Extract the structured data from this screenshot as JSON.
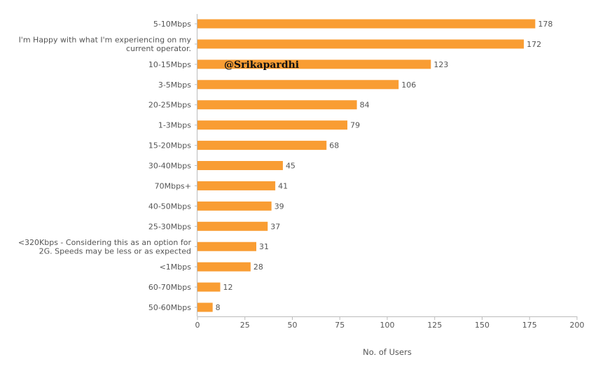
{
  "chart_data": {
    "type": "bar",
    "orientation": "horizontal",
    "categories": [
      "5-10Mbps",
      "I'm Happy with what I'm experiencing on my current operator.",
      "10-15Mbps",
      "3-5Mbps",
      "20-25Mbps",
      "1-3Mbps",
      "15-20Mbps",
      "30-40Mbps",
      "70Mbps+",
      "40-50Mbps",
      "25-30Mbps",
      "<320Kbps - Considering this as an option for 2G. Speeds may be less or as expected",
      "<1Mbps",
      "60-70Mbps",
      "50-60Mbps"
    ],
    "category_lines": [
      [
        "5-10Mbps"
      ],
      [
        "I'm Happy with what I'm experiencing on my",
        "current operator."
      ],
      [
        "10-15Mbps"
      ],
      [
        "3-5Mbps"
      ],
      [
        "20-25Mbps"
      ],
      [
        "1-3Mbps"
      ],
      [
        "15-20Mbps"
      ],
      [
        "30-40Mbps"
      ],
      [
        "70Mbps+"
      ],
      [
        "40-50Mbps"
      ],
      [
        "25-30Mbps"
      ],
      [
        "<320Kbps - Considering this as an option for",
        "2G. Speeds may be less or as expected"
      ],
      [
        "<1Mbps"
      ],
      [
        "60-70Mbps"
      ],
      [
        "50-60Mbps"
      ]
    ],
    "values": [
      178,
      172,
      123,
      106,
      84,
      79,
      68,
      45,
      41,
      39,
      37,
      31,
      28,
      12,
      8
    ],
    "xlabel": "No. of Users",
    "ylabel": "",
    "xlim": [
      0,
      200
    ],
    "xticks": [
      0,
      25,
      50,
      75,
      100,
      125,
      150,
      175,
      200
    ],
    "bar_color": "#f99d33",
    "grid": false,
    "legend": "none",
    "data_labels": true
  },
  "watermark": "@Srikapardhi"
}
